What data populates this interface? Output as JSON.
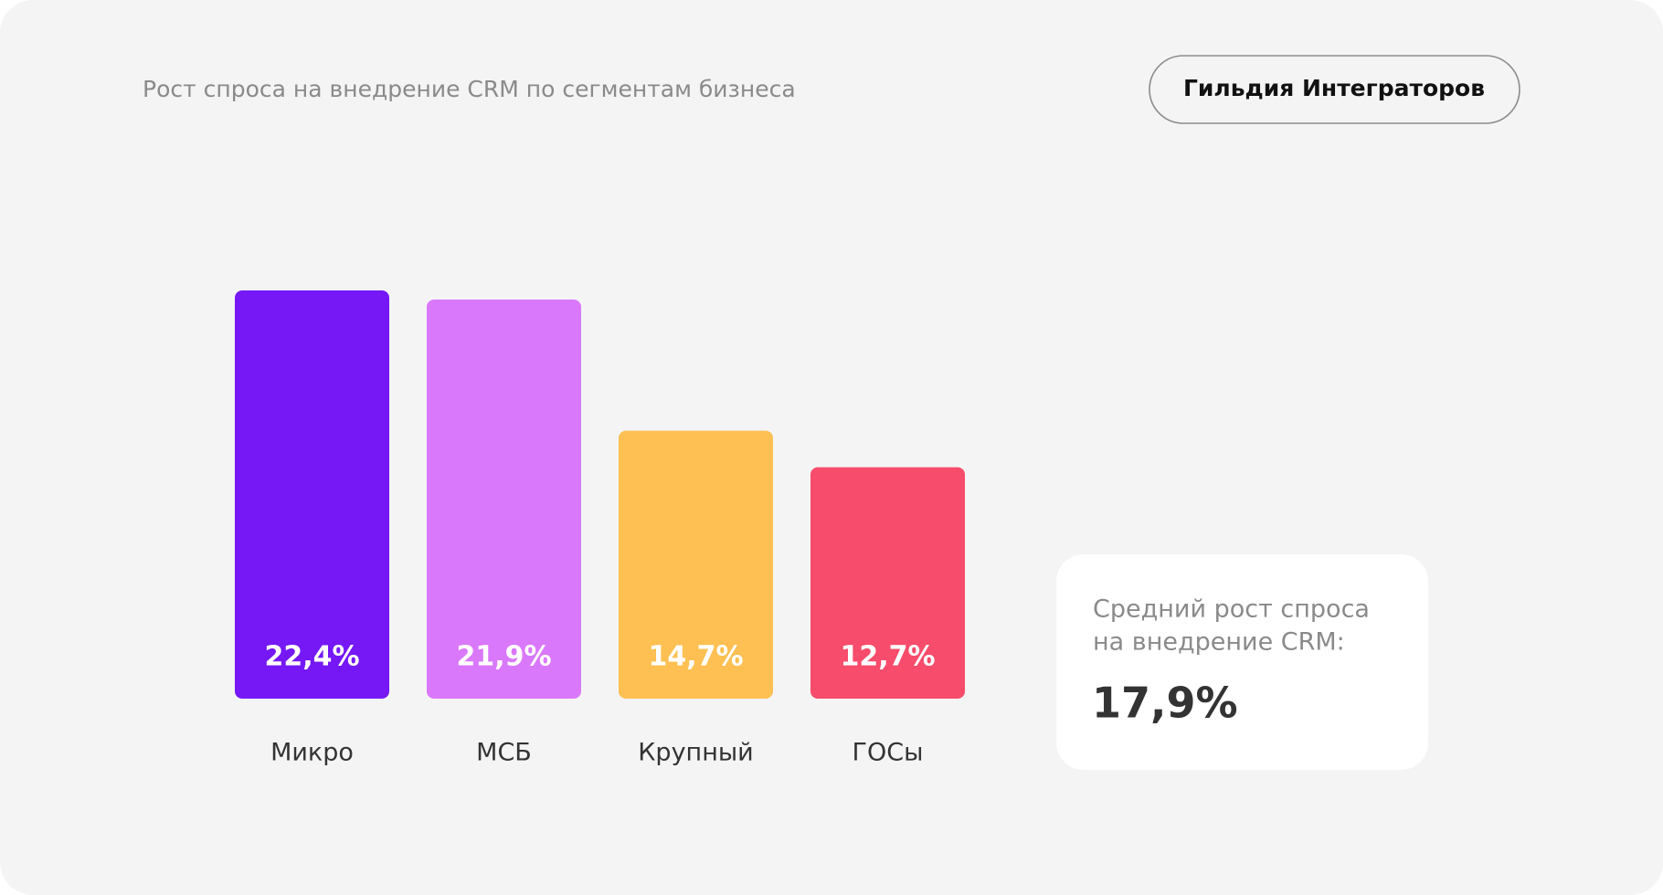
{
  "chart_data": {
    "type": "bar",
    "title": "Рост спроса на внедрение CRM по сегментам бизнеса",
    "source": "Гильдия Интеграторов",
    "categories": [
      "Микро",
      "МСБ",
      "Крупный",
      "ГОСы"
    ],
    "values": [
      22.4,
      21.9,
      14.7,
      12.7
    ],
    "value_labels": [
      "22,4%",
      "21,9%",
      "14,7%",
      "12,7%"
    ],
    "colors": [
      "#7518f5",
      "#da78fb",
      "#fec052",
      "#f74c6b"
    ],
    "average": {
      "text_lines": [
        "Средний рост спроса",
        "на внедрение CRM:"
      ],
      "value": 17.9,
      "value_label": "17,9%"
    }
  }
}
